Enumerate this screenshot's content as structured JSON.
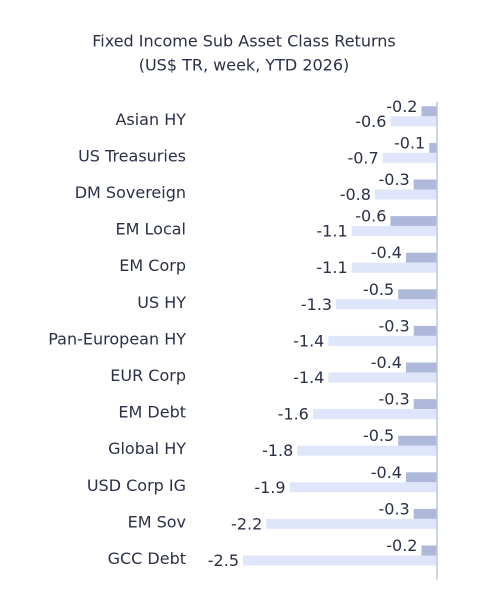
{
  "chart_data": {
    "type": "hbar",
    "title": "Fixed Income Sub Asset Class Returns",
    "subtitle": "(US$ TR, week, YTD 2026)",
    "categories": [
      "Asian HY",
      "US Treasuries",
      "DM Sovereign",
      "EM Local",
      "EM Corp",
      "US HY",
      "Pan-European HY",
      "EUR Corp",
      "EM Debt",
      "Global HY",
      "USD Corp IG",
      "EM Sov",
      "GCC Debt"
    ],
    "series": [
      {
        "color": "#aeb8da",
        "values": [
          -0.2,
          -0.1,
          -0.3,
          -0.6,
          -0.4,
          -0.5,
          -0.3,
          -0.4,
          -0.3,
          -0.5,
          -0.4,
          -0.3,
          -0.2
        ]
      },
      {
        "color": "#dfe6fb",
        "values": [
          -0.6,
          -0.7,
          -0.8,
          -1.1,
          -1.1,
          -1.3,
          -1.4,
          -1.4,
          -1.6,
          -1.8,
          -1.9,
          -2.2,
          -2.5
        ]
      }
    ],
    "xlim": [
      -2.5,
      0
    ]
  }
}
